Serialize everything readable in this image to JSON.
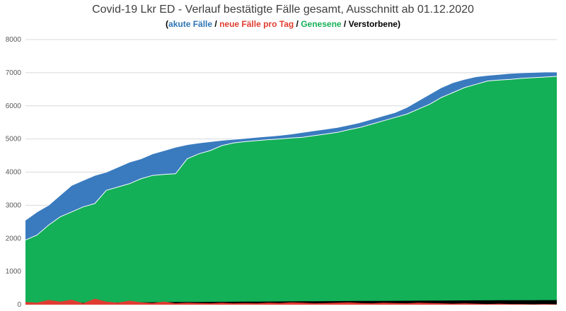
{
  "chart_data": {
    "type": "area",
    "title": "Covid-19 Lkr ED - Verlauf bestätigte Fälle gesamt, Ausschnitt ab 01.12.2020",
    "subtitle": {
      "open": "(",
      "s1": "akute Fälle",
      "sep1": " / ",
      "s2": "neue Fälle pro Tag",
      "sep2": " / ",
      "s3": "Genesene",
      "sep3": " / ",
      "s4": "Verstorbene",
      "close": ")"
    },
    "ylim": [
      0,
      8000
    ],
    "yticks": [
      0,
      1000,
      2000,
      3000,
      4000,
      5000,
      6000,
      7000,
      8000
    ],
    "grid": true,
    "colors": {
      "akute": "#3a7bbf",
      "neue": "#e03c31",
      "genesene": "#13b057",
      "verstorbene": "#000000",
      "text": "#404040"
    },
    "x_days": [
      0,
      5,
      10,
      15,
      20,
      25,
      30,
      35,
      40,
      45,
      50,
      55,
      60,
      65,
      70,
      75,
      80,
      85,
      90,
      95,
      100,
      105,
      110,
      115,
      120,
      125,
      130,
      135,
      140,
      145,
      150,
      155,
      160,
      165,
      170,
      175,
      180,
      185,
      190,
      195,
      200,
      205,
      210,
      215,
      220,
      225,
      230
    ],
    "series": [
      {
        "name": "Fälle gesamt (akute Fälle)",
        "values": [
          2550,
          2800,
          3000,
          3300,
          3600,
          3750,
          3900,
          4000,
          4150,
          4300,
          4400,
          4550,
          4650,
          4750,
          4830,
          4880,
          4920,
          4960,
          4990,
          5020,
          5050,
          5080,
          5110,
          5150,
          5200,
          5250,
          5300,
          5350,
          5420,
          5500,
          5600,
          5700,
          5800,
          5950,
          6150,
          6350,
          6550,
          6700,
          6800,
          6880,
          6920,
          6950,
          6980,
          7000,
          7010,
          7020,
          7020
        ]
      },
      {
        "name": "Genesene",
        "values": [
          1950,
          2100,
          2400,
          2650,
          2800,
          2950,
          3050,
          3450,
          3550,
          3650,
          3800,
          3900,
          3930,
          3950,
          4400,
          4550,
          4650,
          4800,
          4880,
          4920,
          4950,
          4980,
          5000,
          5030,
          5050,
          5100,
          5150,
          5200,
          5280,
          5350,
          5450,
          5550,
          5650,
          5750,
          5900,
          6050,
          6250,
          6400,
          6550,
          6650,
          6750,
          6780,
          6800,
          6830,
          6850,
          6870,
          6890
        ]
      },
      {
        "name": "Verstorbene",
        "values": [
          30,
          35,
          40,
          45,
          50,
          55,
          60,
          62,
          65,
          68,
          70,
          72,
          75,
          78,
          80,
          82,
          84,
          86,
          88,
          90,
          92,
          94,
          96,
          98,
          100,
          102,
          104,
          106,
          108,
          110,
          112,
          114,
          116,
          118,
          120,
          122,
          124,
          126,
          128,
          130,
          131,
          132,
          133,
          134,
          135,
          136,
          137
        ]
      },
      {
        "name": "neue Fälle pro Tag",
        "values": [
          80,
          60,
          140,
          90,
          150,
          40,
          180,
          90,
          60,
          120,
          70,
          50,
          90,
          40,
          60,
          50,
          40,
          60,
          40,
          50,
          40,
          60,
          50,
          70,
          60,
          40,
          50,
          60,
          70,
          50,
          40,
          60,
          50,
          40,
          60,
          50,
          40,
          30,
          40,
          30,
          20,
          30,
          20,
          20,
          10,
          20,
          10
        ]
      }
    ]
  }
}
